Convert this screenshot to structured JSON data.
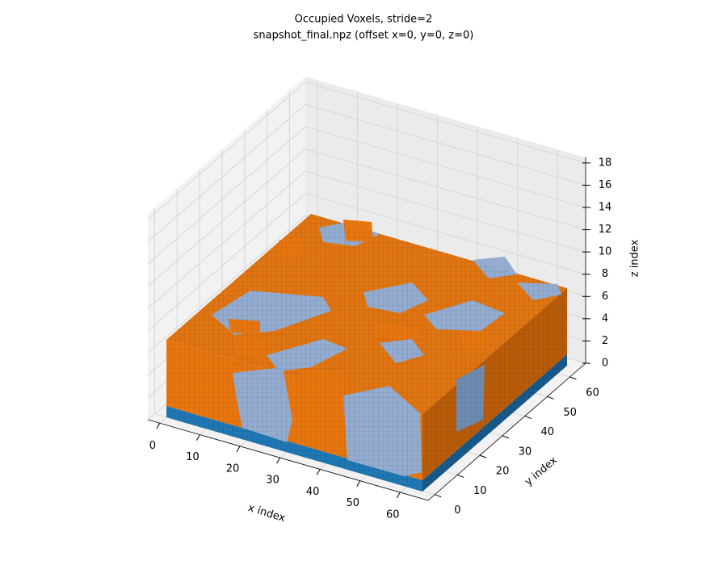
{
  "chart_data": {
    "type": "voxel3d",
    "title": "Occupied Voxels, stride=2",
    "subtitle": "snapshot_final.npz (offset x=0, y=0, z=0)",
    "xlabel": "x index",
    "ylabel": "y index",
    "zlabel": "z index",
    "xlim": [
      -3,
      67
    ],
    "ylim": [
      -3,
      67
    ],
    "zlim": [
      0,
      18.5
    ],
    "xticks": [
      0,
      10,
      20,
      30,
      40,
      50,
      60
    ],
    "yticks": [
      0,
      10,
      20,
      30,
      40,
      50,
      60
    ],
    "zticks": [
      0,
      2,
      4,
      6,
      8,
      10,
      12,
      14,
      16,
      18
    ],
    "grid": true
  }
}
